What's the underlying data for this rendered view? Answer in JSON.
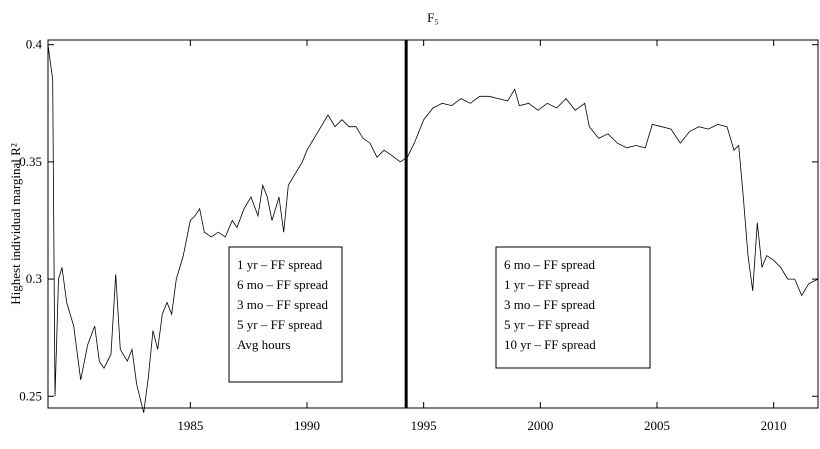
{
  "chart_data": {
    "type": "line",
    "title": "F₅",
    "ylabel": "Highest individual marginal   R²",
    "xlim": [
      1978.9,
      2011.9
    ],
    "xticks": [
      1985,
      1990,
      1995,
      2000,
      2005,
      2010
    ],
    "ylim": [
      0.245,
      0.402
    ],
    "yticks": [
      0.25,
      0.3,
      0.35,
      0.4
    ],
    "vline_x": 1994.25,
    "grid": false,
    "series": [
      {
        "color": "#000000",
        "x": [
          1978.9,
          1979.1,
          1979.2,
          1979.35,
          1979.5,
          1979.7,
          1980.0,
          1980.3,
          1980.6,
          1980.9,
          1981.1,
          1981.3,
          1981.6,
          1981.8,
          1982.0,
          1982.3,
          1982.5,
          1982.7,
          1983.0,
          1983.2,
          1983.4,
          1983.6,
          1983.8,
          1984.0,
          1984.2,
          1984.4,
          1984.7,
          1985.0,
          1985.2,
          1985.4,
          1985.6,
          1985.9,
          1986.2,
          1986.5,
          1986.8,
          1987.0,
          1987.3,
          1987.6,
          1987.9,
          1988.1,
          1988.3,
          1988.5,
          1988.8,
          1989.0,
          1989.2,
          1989.5,
          1989.8,
          1990.0,
          1990.3,
          1990.6,
          1990.9,
          1991.2,
          1991.5,
          1991.8,
          1992.1,
          1992.4,
          1992.7,
          1993.0,
          1993.3,
          1993.6,
          1994.0,
          1994.3,
          1994.6,
          1995.0,
          1995.4,
          1995.8,
          1996.2,
          1996.6,
          1997.0,
          1997.4,
          1997.8,
          1998.2,
          1998.6,
          1998.9,
          1999.1,
          1999.5,
          1999.9,
          2000.3,
          2000.7,
          2001.1,
          2001.5,
          2001.9,
          2002.1,
          2002.5,
          2002.9,
          2003.3,
          2003.7,
          2004.1,
          2004.5,
          2004.8,
          2005.2,
          2005.6,
          2006.0,
          2006.4,
          2006.8,
          2007.2,
          2007.6,
          2008.0,
          2008.3,
          2008.5,
          2008.7,
          2008.9,
          2009.1,
          2009.3,
          2009.5,
          2009.7,
          2010.0,
          2010.3,
          2010.6,
          2010.9,
          2011.2,
          2011.5,
          2011.9
        ],
        "values": [
          0.4,
          0.385,
          0.25,
          0.3,
          0.305,
          0.29,
          0.28,
          0.257,
          0.272,
          0.28,
          0.265,
          0.262,
          0.268,
          0.302,
          0.27,
          0.265,
          0.27,
          0.255,
          0.243,
          0.258,
          0.278,
          0.27,
          0.285,
          0.29,
          0.285,
          0.3,
          0.31,
          0.325,
          0.327,
          0.33,
          0.32,
          0.318,
          0.32,
          0.318,
          0.325,
          0.322,
          0.33,
          0.335,
          0.327,
          0.34,
          0.335,
          0.325,
          0.335,
          0.32,
          0.34,
          0.345,
          0.35,
          0.355,
          0.36,
          0.365,
          0.37,
          0.365,
          0.368,
          0.365,
          0.365,
          0.36,
          0.358,
          0.352,
          0.355,
          0.353,
          0.35,
          0.352,
          0.358,
          0.368,
          0.373,
          0.375,
          0.374,
          0.377,
          0.375,
          0.378,
          0.378,
          0.377,
          0.376,
          0.381,
          0.374,
          0.375,
          0.372,
          0.375,
          0.373,
          0.377,
          0.372,
          0.375,
          0.365,
          0.36,
          0.362,
          0.358,
          0.356,
          0.357,
          0.356,
          0.366,
          0.365,
          0.364,
          0.358,
          0.363,
          0.365,
          0.364,
          0.366,
          0.365,
          0.355,
          0.357,
          0.335,
          0.31,
          0.295,
          0.324,
          0.305,
          0.31,
          0.308,
          0.305,
          0.3,
          0.3,
          0.293,
          0.298,
          0.3
        ]
      }
    ],
    "annotations": [
      [
        "1 yr – FF spread",
        "6 mo – FF spread",
        "3 mo – FF spread",
        "5 yr – FF spread",
        "Avg hours"
      ],
      [
        "6 mo – FF spread",
        "1 yr – FF spread",
        "3 mo – FF spread",
        "5 yr – FF spread",
        "10 yr – FF spread"
      ]
    ]
  }
}
